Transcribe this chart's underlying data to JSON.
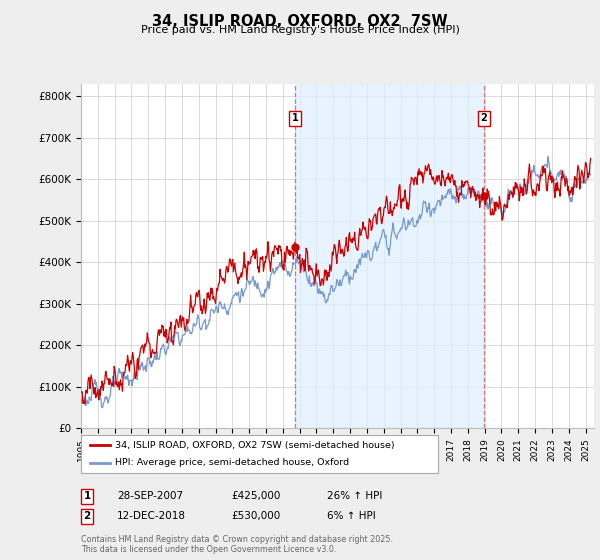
{
  "title": "34, ISLIP ROAD, OXFORD, OX2  7SW",
  "subtitle": "Price paid vs. HM Land Registry's House Price Index (HPI)",
  "legend_line1": "34, ISLIP ROAD, OXFORD, OX2 7SW (semi-detached house)",
  "legend_line2": "HPI: Average price, semi-detached house, Oxford",
  "annotation1": {
    "num": "1",
    "date": "28-SEP-2007",
    "price": "£425,000",
    "hpi": "26% ↑ HPI"
  },
  "annotation2": {
    "num": "2",
    "date": "12-DEC-2018",
    "price": "£530,000",
    "hpi": "6% ↑ HPI"
  },
  "footnote": "Contains HM Land Registry data © Crown copyright and database right 2025.\nThis data is licensed under the Open Government Licence v3.0.",
  "ylim": [
    0,
    830000
  ],
  "yticks": [
    0,
    100000,
    200000,
    300000,
    400000,
    500000,
    600000,
    700000,
    800000
  ],
  "ytick_labels": [
    "£0",
    "£100K",
    "£200K",
    "£300K",
    "£400K",
    "£500K",
    "£600K",
    "£700K",
    "£800K"
  ],
  "bg_color": "#eeeeee",
  "plot_bg_color": "#ffffff",
  "red_color": "#cc0000",
  "blue_color": "#7799cc",
  "shade_color": "#ddeeff",
  "dashed_color": "#cc6666",
  "sale1_year": 2007.74,
  "sale2_year": 2018.95,
  "sale1_price": 425000,
  "sale2_price": 530000,
  "xlim_start": 1995,
  "xlim_end": 2025.5
}
